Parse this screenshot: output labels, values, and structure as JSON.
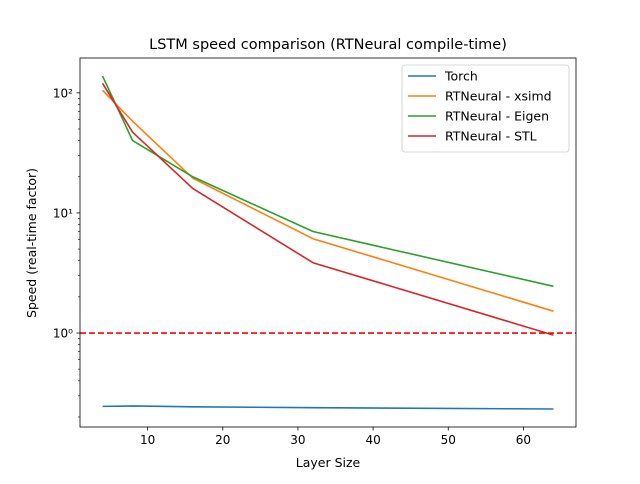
{
  "chart_data": {
    "type": "line",
    "title": "LSTM speed comparison (RTNeural compile-time)",
    "xlabel": "Layer Size",
    "ylabel": "Speed (real-time factor)",
    "yscale": "log",
    "xlim": [
      1.0,
      67.0
    ],
    "ylim": [
      0.165,
      195
    ],
    "xticks": [
      10,
      20,
      30,
      40,
      50,
      60
    ],
    "xtick_labels": [
      "10",
      "20",
      "30",
      "40",
      "50",
      "60"
    ],
    "yticks": [
      1,
      10,
      100
    ],
    "ytick_labels": [
      "10⁰",
      "10¹",
      "10²"
    ],
    "grid": false,
    "legend_position": "top-right",
    "reference_line": {
      "y": 1.0,
      "color": "#ff0000",
      "style": "dashed"
    },
    "x": [
      4,
      8,
      16,
      32,
      64
    ],
    "series": [
      {
        "name": "Torch",
        "color": "#1f77b4",
        "values": [
          0.245,
          0.247,
          0.243,
          0.239,
          0.233
        ]
      },
      {
        "name": "RTNeural - xsimd",
        "color": "#ff7f0e",
        "values": [
          105,
          58,
          19.5,
          6.1,
          1.52
        ]
      },
      {
        "name": "RTNeural - Eigen",
        "color": "#2ca02c",
        "values": [
          138,
          40,
          20,
          7.0,
          2.45
        ]
      },
      {
        "name": "RTNeural - STL",
        "color": "#d62728",
        "values": [
          120,
          47,
          16,
          3.85,
          0.96
        ]
      }
    ]
  }
}
